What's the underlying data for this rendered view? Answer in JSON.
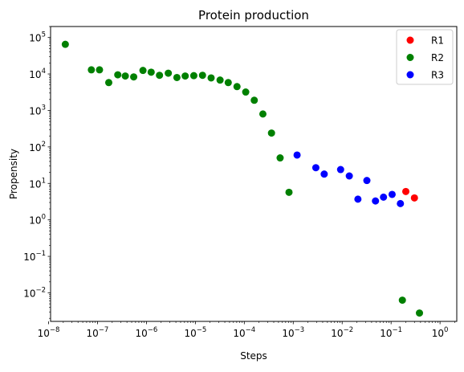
{
  "chart_data": {
    "type": "scatter",
    "title": "Protein production",
    "xlabel": "Steps",
    "ylabel": "Propensity",
    "xscale": "log",
    "yscale": "log",
    "xlim": [
      1.1e-08,
      2.2
    ],
    "ylim": [
      0.00165,
      200000
    ],
    "grid": false,
    "legend_position": "top-right",
    "x_ticks": [
      {
        "value": 1e-08,
        "base": "10",
        "exp": "−8"
      },
      {
        "value": 1e-07,
        "base": "10",
        "exp": "−7"
      },
      {
        "value": 1e-06,
        "base": "10",
        "exp": "−6"
      },
      {
        "value": 1e-05,
        "base": "10",
        "exp": "−5"
      },
      {
        "value": 0.0001,
        "base": "10",
        "exp": "−4"
      },
      {
        "value": 0.001,
        "base": "10",
        "exp": "−3"
      },
      {
        "value": 0.01,
        "base": "10",
        "exp": "−2"
      },
      {
        "value": 0.1,
        "base": "10",
        "exp": "−1"
      },
      {
        "value": 1,
        "base": "10",
        "exp": "0"
      }
    ],
    "y_ticks": [
      {
        "value": 0.01,
        "base": "10",
        "exp": "−2"
      },
      {
        "value": 0.1,
        "base": "10",
        "exp": "−1"
      },
      {
        "value": 1,
        "base": "10",
        "exp": "0"
      },
      {
        "value": 10,
        "base": "10",
        "exp": "1"
      },
      {
        "value": 100,
        "base": "10",
        "exp": "2"
      },
      {
        "value": 1000,
        "base": "10",
        "exp": "3"
      },
      {
        "value": 10000,
        "base": "10",
        "exp": "4"
      },
      {
        "value": 100000,
        "base": "10",
        "exp": "5"
      }
    ],
    "series": [
      {
        "name": "R1",
        "color": "#ff0000",
        "points": [
          [
            0.2,
            6.0
          ],
          [
            0.3,
            4.0
          ]
        ]
      },
      {
        "name": "R2",
        "color": "#008000",
        "points": [
          [
            2.2e-08,
            65000
          ],
          [
            7.5e-08,
            13000
          ],
          [
            1.1e-07,
            13000
          ],
          [
            1.7e-07,
            5800
          ],
          [
            2.6e-07,
            9500
          ],
          [
            3.7e-07,
            8800
          ],
          [
            5.5e-07,
            8300
          ],
          [
            8.5e-07,
            12500
          ],
          [
            1.25e-06,
            11200
          ],
          [
            1.85e-06,
            9200
          ],
          [
            2.8e-06,
            10500
          ],
          [
            4.2e-06,
            8000
          ],
          [
            6.2e-06,
            8800
          ],
          [
            9.3e-06,
            9000
          ],
          [
            1.4e-05,
            9200
          ],
          [
            2.1e-05,
            7800
          ],
          [
            3.2e-05,
            6800
          ],
          [
            4.7e-05,
            5800
          ],
          [
            7.1e-05,
            4500
          ],
          [
            0.000107,
            3200
          ],
          [
            0.00016,
            1900
          ],
          [
            0.00024,
            800
          ],
          [
            0.00036,
            240
          ],
          [
            0.00054,
            50
          ],
          [
            0.00082,
            5.7
          ],
          [
            0.17,
            0.0063
          ],
          [
            0.38,
            0.0028
          ]
        ]
      },
      {
        "name": "R3",
        "color": "#0000ff",
        "points": [
          [
            0.0012,
            60
          ],
          [
            0.0029,
            27
          ],
          [
            0.0043,
            18
          ],
          [
            0.0093,
            24
          ],
          [
            0.014,
            16
          ],
          [
            0.021,
            3.7
          ],
          [
            0.032,
            12
          ],
          [
            0.048,
            3.3
          ],
          [
            0.07,
            4.2
          ],
          [
            0.105,
            5.0
          ],
          [
            0.155,
            2.8
          ]
        ]
      }
    ]
  }
}
